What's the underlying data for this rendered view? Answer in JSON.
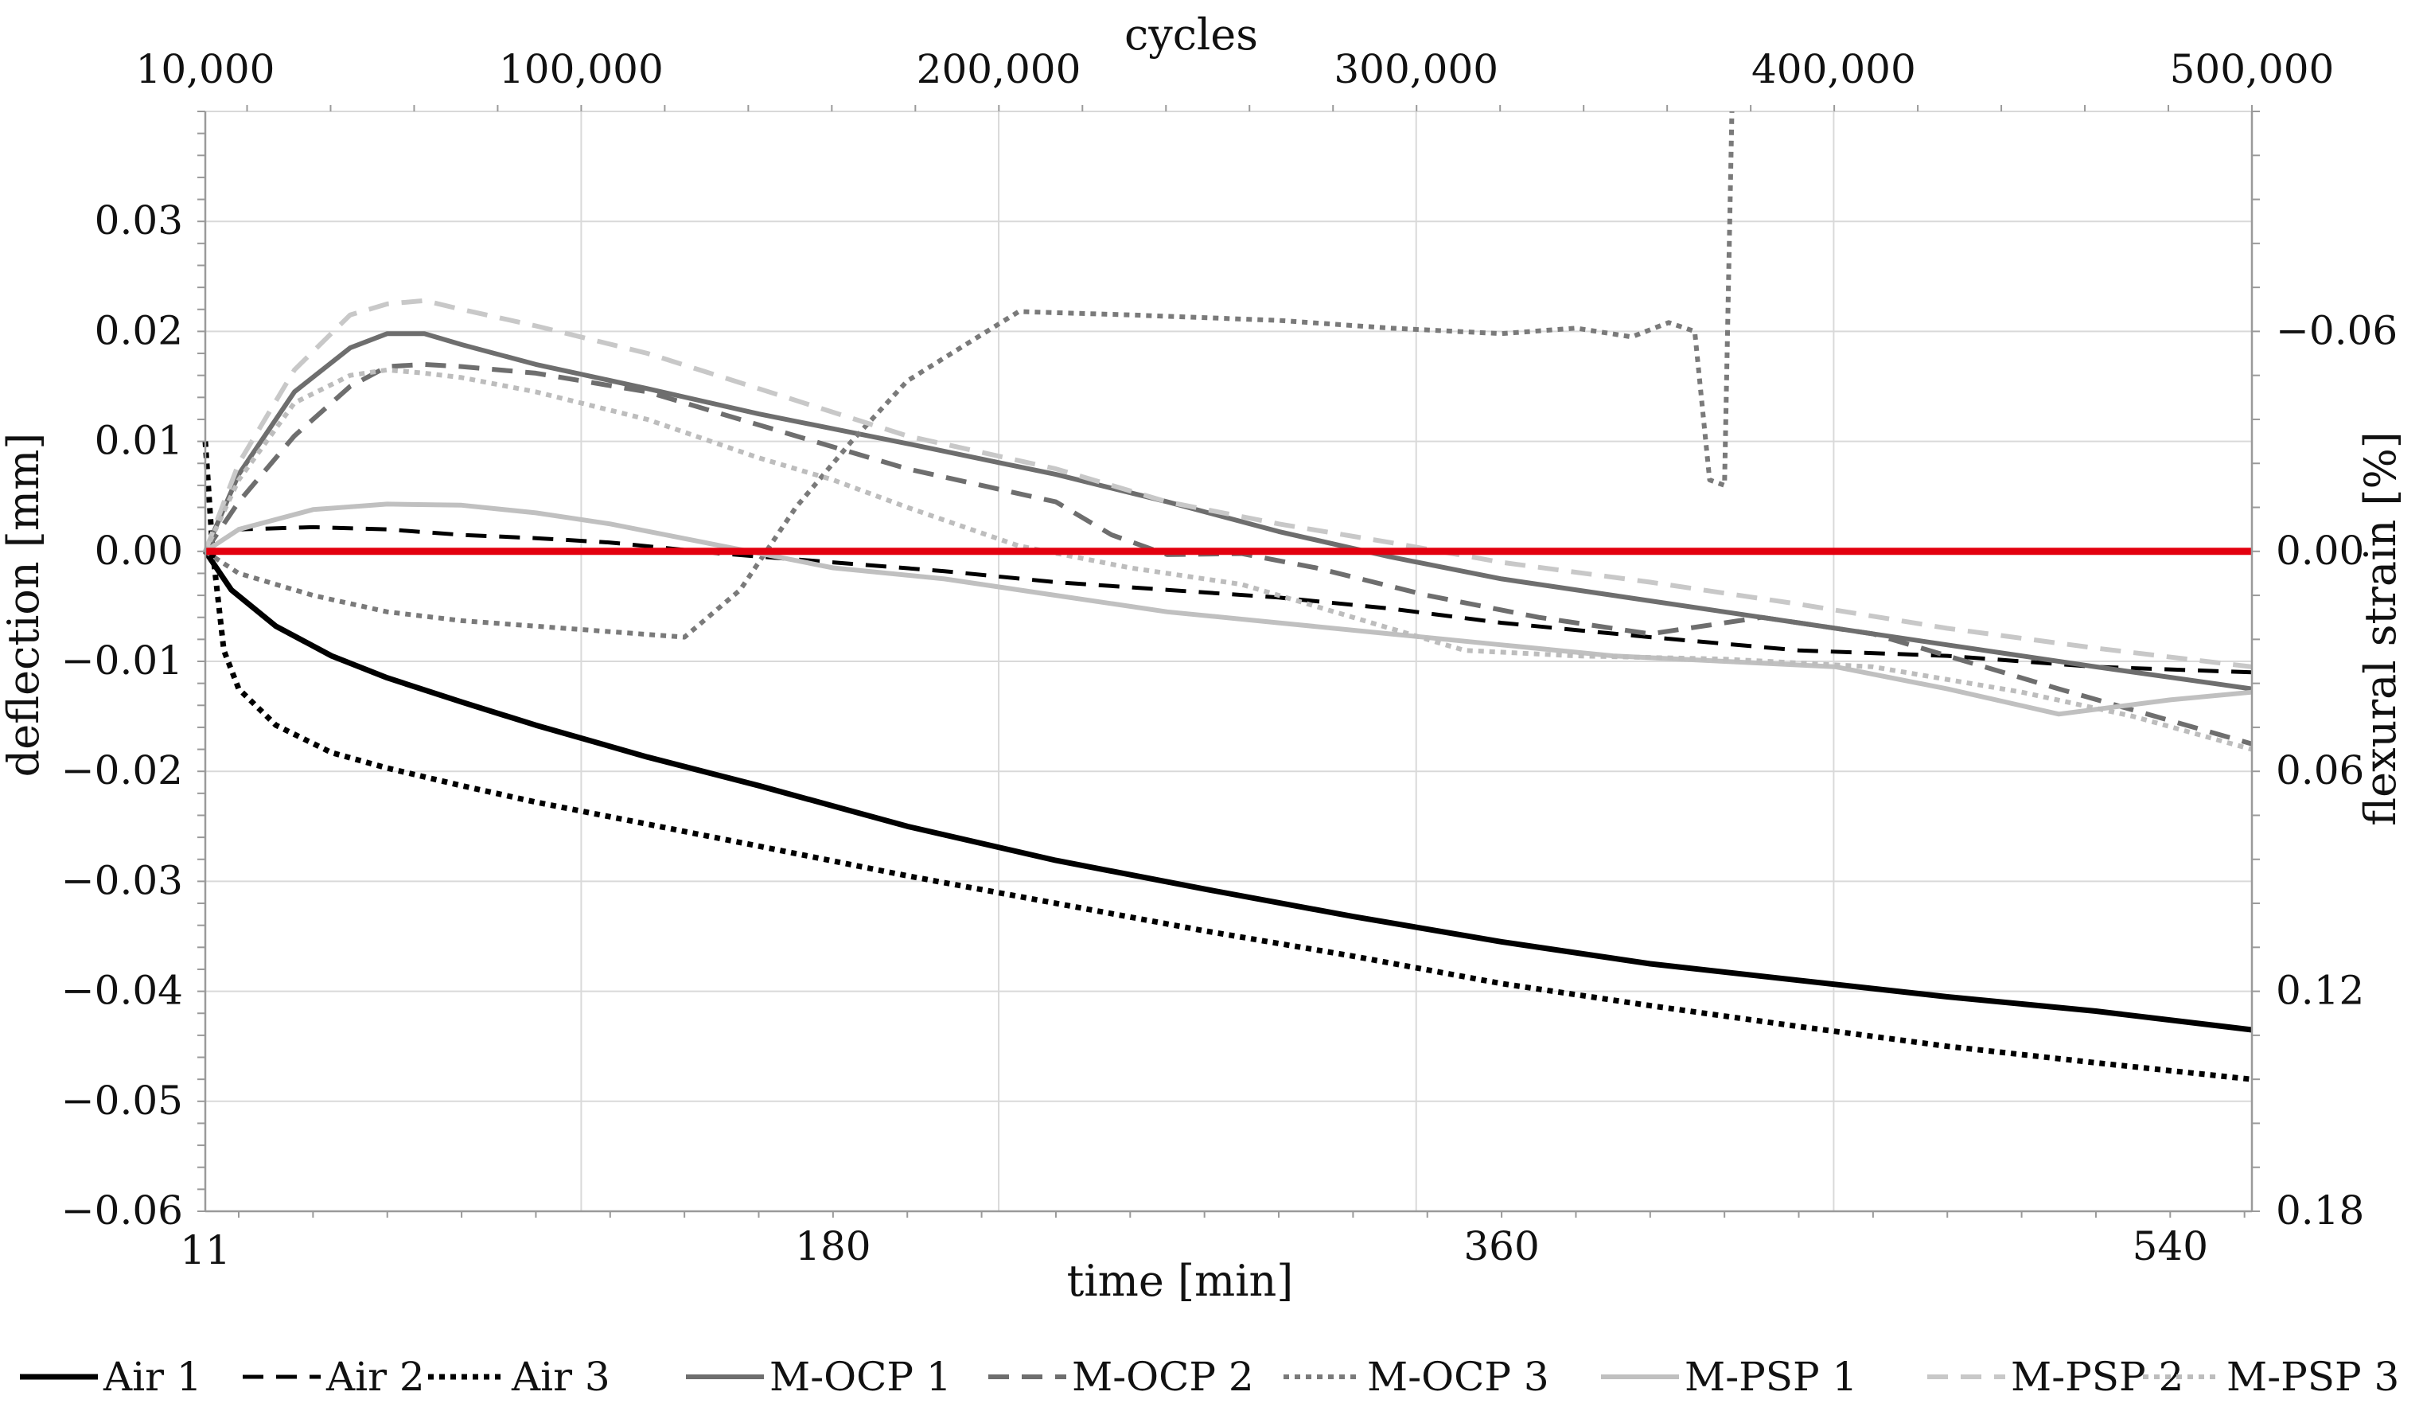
{
  "chart_data": {
    "type": "line",
    "title": "",
    "x_axis_bottom": {
      "label": "time [min]",
      "range": [
        11,
        562
      ],
      "ticks": [
        11,
        180,
        360,
        540
      ],
      "tick_labels": [
        "11",
        "180",
        "360",
        "540"
      ]
    },
    "x_axis_top": {
      "label": "cycles",
      "tick_labels": [
        "10,000",
        "100,000",
        "200,000",
        "300,000",
        "400,000",
        "500,000"
      ],
      "tick_values_min": [
        11,
        112.2,
        224.6,
        337.0,
        449.4,
        562
      ]
    },
    "y_axis_left": {
      "label": "deflection [mm]",
      "range": [
        -0.06,
        0.04
      ],
      "ticks": [
        -0.06,
        -0.05,
        -0.04,
        -0.03,
        -0.02,
        -0.01,
        0.0,
        0.01,
        0.02,
        0.03
      ],
      "tick_labels": [
        "−0.06",
        "−0.05",
        "−0.04",
        "−0.03",
        "−0.02",
        "−0.01",
        "0.00",
        "0.01",
        "0.02",
        "0.03"
      ]
    },
    "y_axis_right": {
      "label": "flexural strain [%]",
      "ticks_at_deflection": [
        0.02,
        0.0,
        -0.02,
        -0.04,
        -0.06
      ],
      "tick_labels": [
        "−0.06",
        "0.00",
        "0.06",
        "0.12",
        "0.18"
      ]
    },
    "reference_line": {
      "y": 0.0,
      "color": "#e3000f"
    },
    "grid": true,
    "legend_position": "bottom",
    "series": [
      {
        "name": "Air 1",
        "color": "#000000",
        "dash": "solid",
        "x": [
          11,
          18,
          30,
          45,
          60,
          80,
          100,
          130,
          160,
          200,
          240,
          280,
          320,
          360,
          400,
          440,
          480,
          520,
          562
        ],
        "y": [
          0.0,
          -0.0035,
          -0.0068,
          -0.0095,
          -0.0115,
          -0.0137,
          -0.0158,
          -0.0187,
          -0.0213,
          -0.025,
          -0.0281,
          -0.0307,
          -0.0332,
          -0.0355,
          -0.0375,
          -0.039,
          -0.0405,
          -0.0418,
          -0.0435
        ]
      },
      {
        "name": "Air 2",
        "color": "#000000",
        "dash": "dash",
        "x": [
          11,
          20,
          40,
          60,
          80,
          100,
          120,
          150,
          180,
          210,
          240,
          270,
          300,
          330,
          360,
          400,
          440,
          480,
          520,
          562
        ],
        "y": [
          0.0,
          0.002,
          0.0022,
          0.002,
          0.0015,
          0.0012,
          0.0008,
          -0.0002,
          -0.001,
          -0.0018,
          -0.0028,
          -0.0035,
          -0.0042,
          -0.0052,
          -0.0065,
          -0.0078,
          -0.009,
          -0.0095,
          -0.0105,
          -0.011
        ]
      },
      {
        "name": "Air 3",
        "color": "#000000",
        "dash": "dot",
        "x": [
          11,
          13,
          16,
          20,
          30,
          45,
          60,
          80,
          100,
          130,
          160,
          200,
          240,
          280,
          320,
          360,
          400,
          440,
          480,
          520,
          562
        ],
        "y": [
          0.01,
          0.0,
          -0.009,
          -0.0125,
          -0.0158,
          -0.0183,
          -0.0197,
          -0.0213,
          -0.0228,
          -0.0248,
          -0.0268,
          -0.0295,
          -0.032,
          -0.0345,
          -0.0368,
          -0.0393,
          -0.0413,
          -0.0432,
          -0.045,
          -0.0465,
          -0.048
        ]
      },
      {
        "name": "M-OCP 1",
        "color": "#6e6e6e",
        "dash": "solid",
        "x": [
          11,
          20,
          35,
          50,
          60,
          70,
          80,
          100,
          130,
          160,
          200,
          240,
          270,
          300,
          330,
          360,
          400,
          440,
          480,
          520,
          562
        ],
        "y": [
          0.0,
          0.007,
          0.0145,
          0.0185,
          0.0198,
          0.0198,
          0.0188,
          0.017,
          0.0148,
          0.0125,
          0.0098,
          0.007,
          0.0045,
          0.0018,
          -0.0005,
          -0.0025,
          -0.0045,
          -0.0065,
          -0.0085,
          -0.0105,
          -0.0125
        ]
      },
      {
        "name": "M-OCP 2",
        "color": "#6e6e6e",
        "dash": "dash",
        "x": [
          11,
          20,
          35,
          50,
          60,
          70,
          80,
          100,
          130,
          160,
          200,
          240,
          255,
          270,
          290,
          310,
          340,
          370,
          400,
          430,
          460,
          480,
          510,
          562
        ],
        "y": [
          0.0,
          0.0045,
          0.0105,
          0.015,
          0.0168,
          0.017,
          0.0168,
          0.0162,
          0.0145,
          0.0115,
          0.0075,
          0.0045,
          0.0015,
          -0.0003,
          -0.0002,
          -0.0015,
          -0.004,
          -0.006,
          -0.0075,
          -0.006,
          -0.0075,
          -0.0095,
          -0.0125,
          -0.0175
        ]
      },
      {
        "name": "M-OCP 3",
        "color": "#7a7a7a",
        "dash": "dot",
        "x": [
          11,
          20,
          40,
          60,
          80,
          100,
          120,
          140,
          155,
          170,
          185,
          200,
          230,
          260,
          300,
          330,
          360,
          380,
          395,
          405,
          412,
          416,
          420,
          422
        ],
        "y": [
          0.0,
          -0.002,
          -0.004,
          -0.0055,
          -0.0063,
          -0.0068,
          -0.0073,
          -0.0078,
          -0.0035,
          0.004,
          0.01,
          0.0155,
          0.0218,
          0.0215,
          0.021,
          0.0203,
          0.0198,
          0.0203,
          0.0195,
          0.0208,
          0.02,
          0.0065,
          0.006,
          0.04
        ]
      },
      {
        "name": "M-PSP 1",
        "color": "#c0c0c0",
        "dash": "solid",
        "x": [
          11,
          20,
          40,
          60,
          80,
          100,
          120,
          150,
          180,
          210,
          240,
          270,
          300,
          330,
          360,
          390,
          420,
          450,
          480,
          510,
          540,
          562
        ],
        "y": [
          0.0,
          0.002,
          0.0038,
          0.0043,
          0.0042,
          0.0035,
          0.0025,
          0.0005,
          -0.0015,
          -0.0025,
          -0.004,
          -0.0055,
          -0.0065,
          -0.0075,
          -0.0085,
          -0.0095,
          -0.01,
          -0.0105,
          -0.0125,
          -0.0148,
          -0.0135,
          -0.0128
        ]
      },
      {
        "name": "M-PSP 2",
        "color": "#c8c8c8",
        "dash": "dash",
        "x": [
          11,
          20,
          35,
          50,
          60,
          70,
          80,
          100,
          130,
          160,
          200,
          240,
          270,
          300,
          330,
          360,
          400,
          440,
          480,
          520,
          562
        ],
        "y": [
          0.0,
          0.008,
          0.0165,
          0.0215,
          0.0225,
          0.0228,
          0.022,
          0.0205,
          0.018,
          0.0148,
          0.0105,
          0.0075,
          0.0045,
          0.0025,
          0.0008,
          -0.001,
          -0.0028,
          -0.0048,
          -0.007,
          -0.0088,
          -0.0105
        ]
      },
      {
        "name": "M-PSP 3",
        "color": "#bdbdbd",
        "dash": "dot",
        "x": [
          11,
          20,
          35,
          50,
          60,
          70,
          80,
          100,
          130,
          160,
          180,
          200,
          230,
          260,
          290,
          320,
          350,
          380,
          420,
          460,
          500,
          530,
          562
        ],
        "y": [
          0.0,
          0.0065,
          0.0135,
          0.016,
          0.0165,
          0.0162,
          0.0158,
          0.0145,
          0.012,
          0.0085,
          0.0065,
          0.004,
          0.0005,
          -0.0015,
          -0.003,
          -0.006,
          -0.009,
          -0.0095,
          -0.0098,
          -0.0105,
          -0.0128,
          -0.015,
          -0.018
        ]
      }
    ]
  }
}
